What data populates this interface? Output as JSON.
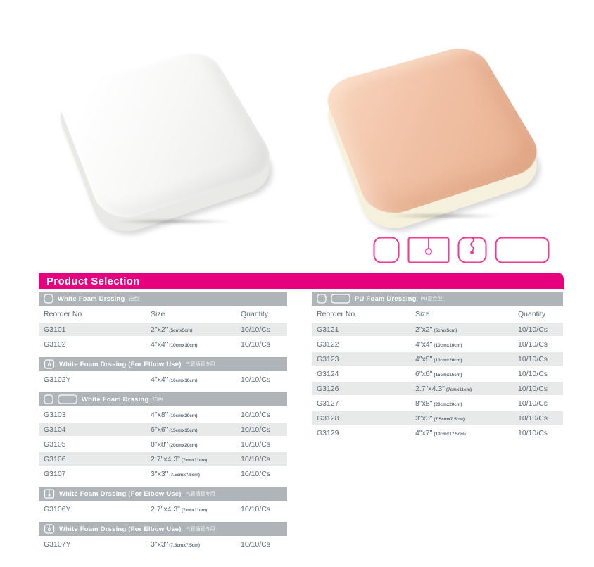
{
  "colors": {
    "accent_magenta": "#e6007e",
    "icon_pink": "#ee3a93",
    "section_bar_gray": "#aeb4b8",
    "row_shade_gray": "#e8eaea",
    "table_text": "#5c6b75",
    "white_foam_top": "#f7f7f6",
    "pu_foam_top": "#f1c1a5",
    "pu_foam_base": "#f5f1dc"
  },
  "header": {
    "title": "Product Selection"
  },
  "product_images": [
    "white-foam-dressing",
    "pu-foam-dressing"
  ],
  "shape_icons": [
    "rounded-square-pad",
    "rect-pad-with-tube-hole",
    "rounded-pad-with-wavy-slit",
    "wide-rounded-rect-pad"
  ],
  "tables": {
    "left": {
      "columns": [
        "Reorder No.",
        "Size",
        "Quantity"
      ],
      "sections": [
        {
          "icons": [
            "square"
          ],
          "label": "White Foam Drssing",
          "label_cn": "白色",
          "rows": [
            {
              "reorder": "G3101",
              "size_in": "2\"x2\"",
              "size_cm": "(5cmx5cm)",
              "qty": "10/10/Cs",
              "shaded": true
            },
            {
              "reorder": "G3102",
              "size_in": "4\"x4\"",
              "size_cm": "(10cmx10cm)",
              "qty": "10/10/Cs",
              "shaded": false
            }
          ]
        },
        {
          "icons": [
            "square-tube"
          ],
          "label": "White Foam Drssing (For Elbow Use)",
          "label_cn": "气管插管专用",
          "rows": [
            {
              "reorder": "G3102Y",
              "size_in": "4\"x4\"",
              "size_cm": "(10cmx10cm)",
              "qty": "10/10/Cs",
              "shaded": false
            }
          ]
        },
        {
          "icons": [
            "square",
            "rect"
          ],
          "label": "White Foam Drssing",
          "label_cn": "白色",
          "rows": [
            {
              "reorder": "G3103",
              "size_in": "4\"x8\"",
              "size_cm": "(10cmx20cm)",
              "qty": "10/10/Cs",
              "shaded": false
            },
            {
              "reorder": "G3104",
              "size_in": "6\"x6\"",
              "size_cm": "(15cmx15cm)",
              "qty": "10/10/Cs",
              "shaded": true
            },
            {
              "reorder": "G3105",
              "size_in": "8\"x8\"",
              "size_cm": "(20cmx20cm)",
              "qty": "10/10/Cs",
              "shaded": false
            },
            {
              "reorder": "G3106",
              "size_in": "2.7\"x4.3\"",
              "size_cm": "(7cmx11cm)",
              "qty": "10/10/Cs",
              "shaded": true
            },
            {
              "reorder": "G3107",
              "size_in": "3\"x3\"",
              "size_cm": "(7.5cmx7.5cm)",
              "qty": "10/10/Cs",
              "shaded": false
            }
          ]
        },
        {
          "icons": [
            "square-tube-dot"
          ],
          "label": "White Foam Drssing (For Elbow Use)",
          "label_cn": "气管插管专用",
          "rows": [
            {
              "reorder": "G3106Y",
              "size_in": "2.7\"x4.3\"",
              "size_cm": "(7cmx11cm)",
              "qty": "10/10/Cs",
              "shaded": false
            }
          ]
        },
        {
          "icons": [
            "square-tube"
          ],
          "label": "White Foam Drssing (For Elbow Use)",
          "label_cn": "气管插管专用",
          "rows": [
            {
              "reorder": "G3107Y",
              "size_in": "3\"x3\"",
              "size_cm": "(7.5cmx7.5cm)",
              "qty": "10/10/Cs",
              "shaded": false
            }
          ]
        }
      ]
    },
    "right": {
      "columns": [
        "Reorder No.",
        "Size",
        "Quantity"
      ],
      "sections": [
        {
          "icons": [
            "square",
            "rect"
          ],
          "label": "PU Foam Dressing",
          "label_cn": "PU复合型",
          "rows": [
            {
              "reorder": "G3121",
              "size_in": "2\"x2\"",
              "size_cm": "(5cmx5cm)",
              "qty": "10/10/Cs",
              "shaded": true
            },
            {
              "reorder": "G3122",
              "size_in": "4\"x4\"",
              "size_cm": "(10cmx10cm)",
              "qty": "10/10/Cs",
              "shaded": false
            },
            {
              "reorder": "G3123",
              "size_in": "4\"x8\"",
              "size_cm": "(10cmx20cm)",
              "qty": "10/10/Cs",
              "shaded": true
            },
            {
              "reorder": "G3124",
              "size_in": "6\"x6\"",
              "size_cm": "(15cmx15cm)",
              "qty": "10/10/Cs",
              "shaded": false
            },
            {
              "reorder": "G3126",
              "size_in": "2.7\"x4.3\"",
              "size_cm": "(7cmx11cm)",
              "qty": "10/10/Cs",
              "shaded": true
            },
            {
              "reorder": "G3127",
              "size_in": "8\"x8\"",
              "size_cm": "(20cmx20cm)",
              "qty": "10/10/Cs",
              "shaded": false
            },
            {
              "reorder": "G3128",
              "size_in": "3\"x3\"",
              "size_cm": "(7.5cmx7.5cm)",
              "qty": "10/10/Cs",
              "shaded": true
            },
            {
              "reorder": "G3129",
              "size_in": "4\"x7\"",
              "size_cm": "(10cmx17.5cm)",
              "qty": "10/10/Cs",
              "shaded": false
            }
          ]
        }
      ]
    }
  }
}
